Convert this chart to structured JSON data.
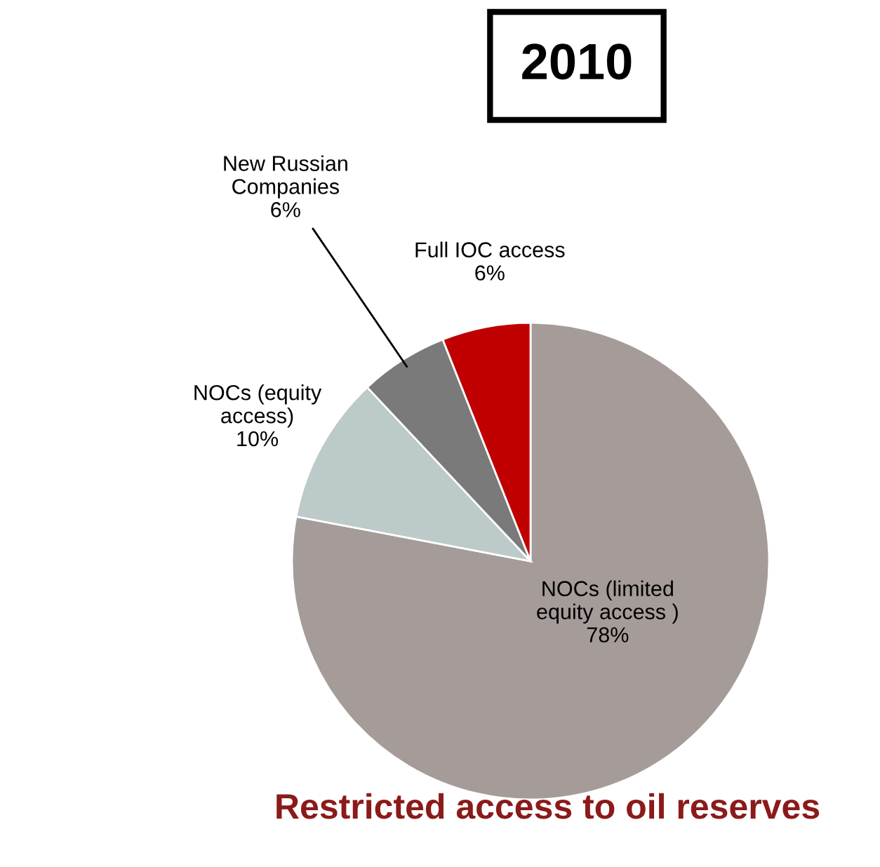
{
  "chart_data": {
    "type": "pie",
    "title": "Restricted access to oil reserves",
    "subtitle": "2010",
    "categories": [
      "NOCs (limited\nequity access )",
      "NOCs (equity\naccess)",
      "New Russian\nCompanies",
      "Full IOC access"
    ],
    "values": [
      78,
      10,
      6,
      6
    ],
    "value_labels": [
      "78%",
      "10%",
      "6%",
      "6%"
    ],
    "colors": [
      "#a59c9a",
      "#bccaca",
      "#7a7a7a",
      "#c00000"
    ],
    "legend": false
  }
}
